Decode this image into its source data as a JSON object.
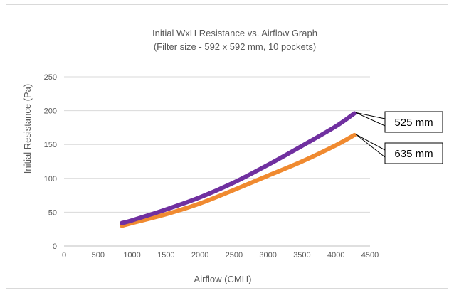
{
  "chart_data": {
    "type": "line",
    "title": "Initial WxH Resistance vs. Airflow Graph",
    "subtitle": "(Filter size - 592 x 592 mm, 10 pockets)",
    "xlabel": "Airflow (CMH)",
    "ylabel": "Initial Resistance (Pa)",
    "xlim": [
      0,
      4500
    ],
    "ylim": [
      0,
      250
    ],
    "xticks": [
      "0",
      "500",
      "1000",
      "1500",
      "2000",
      "2500",
      "3000",
      "3500",
      "4000",
      "4500"
    ],
    "yticks": [
      "0",
      "50",
      "100",
      "150",
      "200",
      "250"
    ],
    "grid": "horizontal",
    "series": [
      {
        "name": "525 mm",
        "color": "#7030a0",
        "x": [
          850,
          1000,
          1500,
          2000,
          2500,
          3000,
          3500,
          4000,
          4270
        ],
        "y": [
          34,
          38,
          54,
          72,
          94,
          120,
          148,
          177,
          196
        ]
      },
      {
        "name": "635 mm",
        "color": "#f08a30",
        "x": [
          850,
          1000,
          1500,
          2000,
          2500,
          3000,
          3500,
          4000,
          4270
        ],
        "y": [
          30,
          34,
          47,
          63,
          83,
          104,
          125,
          149,
          164
        ]
      }
    ]
  }
}
